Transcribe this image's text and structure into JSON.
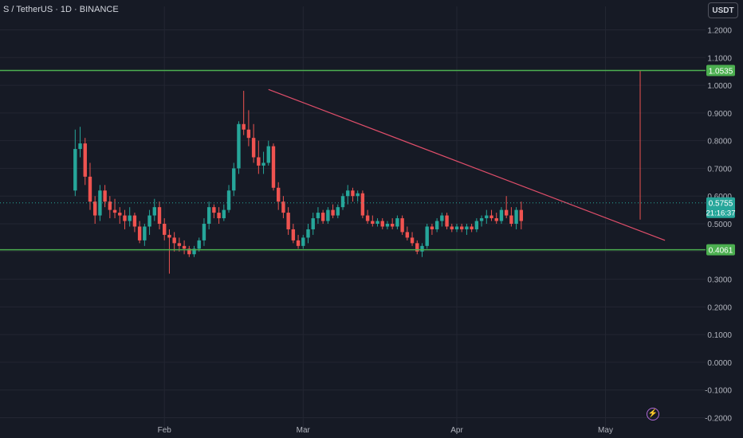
{
  "header": {
    "symbol": "S / TetherUS · 1D · BINANCE",
    "currency_button": "USDT"
  },
  "colors": {
    "background": "#161a25",
    "grid": "#232632",
    "text": "#b2b5be",
    "up": "#26a69a",
    "down": "#ef5350",
    "support_line": "#4caf50",
    "trendline": "#e04e6a",
    "last_price_line": "#26a69a",
    "spike": "#ef5350"
  },
  "chart_data": {
    "type": "candlestick",
    "title": "",
    "y_ticks": [
      "1.2000",
      "1.1000",
      "1.0000",
      "0.9000",
      "0.8000",
      "0.7000",
      "0.6000",
      "0.5000",
      "0.4000",
      "0.3000",
      "0.2000",
      "0.1000",
      "0.0000",
      "-0.1000",
      "-0.2000"
    ],
    "y_range": [
      -0.2,
      1.3
    ],
    "x_ticks": [
      {
        "label": "Feb",
        "date": "2025-02-01"
      },
      {
        "label": "Mar",
        "date": "2025-03-01"
      },
      {
        "label": "Apr",
        "date": "2025-04-01"
      },
      {
        "label": "May",
        "date": "2025-05-01"
      }
    ],
    "x_range": [
      "2025-01-09",
      "2025-05-26"
    ],
    "horizontal_levels": [
      {
        "value": 1.0535,
        "label": "1.0535"
      },
      {
        "value": 0.4061,
        "label": "0.4061"
      }
    ],
    "current_price": {
      "value": 0.5755,
      "label": "0.5755",
      "countdown": "21:16:37"
    },
    "trendline": {
      "from": {
        "date": "2025-02-22",
        "price": 0.985
      },
      "to": {
        "date": "2025-05-13",
        "price": 0.44
      }
    },
    "spike": {
      "date": "2025-05-08",
      "from": 0.515,
      "to": 1.0535
    },
    "candles": [
      [
        "2025-01-14",
        0.62,
        0.84,
        0.6,
        0.77
      ],
      [
        "2025-01-15",
        0.77,
        0.85,
        0.74,
        0.79
      ],
      [
        "2025-01-16",
        0.79,
        0.81,
        0.64,
        0.67
      ],
      [
        "2025-01-17",
        0.67,
        0.72,
        0.55,
        0.58
      ],
      [
        "2025-01-18",
        0.58,
        0.6,
        0.5,
        0.53
      ],
      [
        "2025-01-19",
        0.53,
        0.64,
        0.51,
        0.62
      ],
      [
        "2025-01-20",
        0.62,
        0.64,
        0.56,
        0.58
      ],
      [
        "2025-01-21",
        0.58,
        0.6,
        0.52,
        0.55
      ],
      [
        "2025-01-22",
        0.55,
        0.59,
        0.52,
        0.54
      ],
      [
        "2025-01-23",
        0.54,
        0.56,
        0.5,
        0.53
      ],
      [
        "2025-01-24",
        0.53,
        0.55,
        0.48,
        0.51
      ],
      [
        "2025-01-25",
        0.51,
        0.56,
        0.49,
        0.53
      ],
      [
        "2025-01-26",
        0.53,
        0.54,
        0.47,
        0.49
      ],
      [
        "2025-01-27",
        0.49,
        0.51,
        0.43,
        0.44
      ],
      [
        "2025-01-28",
        0.44,
        0.5,
        0.42,
        0.49
      ],
      [
        "2025-01-29",
        0.49,
        0.55,
        0.46,
        0.53
      ],
      [
        "2025-01-30",
        0.53,
        0.59,
        0.51,
        0.56
      ],
      [
        "2025-01-31",
        0.56,
        0.58,
        0.48,
        0.5
      ],
      [
        "2025-02-01",
        0.5,
        0.52,
        0.44,
        0.46
      ],
      [
        "2025-02-02",
        0.46,
        0.48,
        0.32,
        0.45
      ],
      [
        "2025-02-03",
        0.45,
        0.47,
        0.4,
        0.43
      ],
      [
        "2025-02-04",
        0.43,
        0.45,
        0.4,
        0.42
      ],
      [
        "2025-02-05",
        0.42,
        0.44,
        0.39,
        0.41
      ],
      [
        "2025-02-06",
        0.41,
        0.42,
        0.38,
        0.39
      ],
      [
        "2025-02-07",
        0.39,
        0.42,
        0.38,
        0.41
      ],
      [
        "2025-02-08",
        0.41,
        0.45,
        0.4,
        0.44
      ],
      [
        "2025-02-09",
        0.44,
        0.52,
        0.42,
        0.5
      ],
      [
        "2025-02-10",
        0.5,
        0.58,
        0.48,
        0.56
      ],
      [
        "2025-02-11",
        0.56,
        0.57,
        0.52,
        0.54
      ],
      [
        "2025-02-12",
        0.54,
        0.56,
        0.5,
        0.52
      ],
      [
        "2025-02-13",
        0.52,
        0.57,
        0.51,
        0.55
      ],
      [
        "2025-02-14",
        0.55,
        0.64,
        0.54,
        0.62
      ],
      [
        "2025-02-15",
        0.62,
        0.72,
        0.6,
        0.7
      ],
      [
        "2025-02-16",
        0.7,
        0.87,
        0.68,
        0.86
      ],
      [
        "2025-02-17",
        0.86,
        0.98,
        0.82,
        0.84
      ],
      [
        "2025-02-18",
        0.84,
        0.91,
        0.78,
        0.81
      ],
      [
        "2025-02-19",
        0.81,
        0.86,
        0.72,
        0.74
      ],
      [
        "2025-02-20",
        0.74,
        0.8,
        0.68,
        0.71
      ],
      [
        "2025-02-21",
        0.71,
        0.76,
        0.68,
        0.72
      ],
      [
        "2025-02-22",
        0.72,
        0.8,
        0.71,
        0.78
      ],
      [
        "2025-02-23",
        0.78,
        0.79,
        0.62,
        0.63
      ],
      [
        "2025-02-24",
        0.63,
        0.65,
        0.55,
        0.58
      ],
      [
        "2025-02-25",
        0.58,
        0.6,
        0.52,
        0.54
      ],
      [
        "2025-02-26",
        0.54,
        0.56,
        0.46,
        0.48
      ],
      [
        "2025-02-27",
        0.48,
        0.5,
        0.43,
        0.44
      ],
      [
        "2025-02-28",
        0.44,
        0.46,
        0.41,
        0.42
      ],
      [
        "2025-03-01",
        0.42,
        0.46,
        0.41,
        0.45
      ],
      [
        "2025-03-02",
        0.45,
        0.5,
        0.43,
        0.48
      ],
      [
        "2025-03-03",
        0.48,
        0.54,
        0.46,
        0.52
      ],
      [
        "2025-03-04",
        0.52,
        0.56,
        0.5,
        0.54
      ],
      [
        "2025-03-05",
        0.54,
        0.55,
        0.5,
        0.51
      ],
      [
        "2025-03-06",
        0.51,
        0.56,
        0.5,
        0.55
      ],
      [
        "2025-03-07",
        0.55,
        0.57,
        0.52,
        0.53
      ],
      [
        "2025-03-08",
        0.53,
        0.57,
        0.52,
        0.56
      ],
      [
        "2025-03-09",
        0.56,
        0.61,
        0.55,
        0.6
      ],
      [
        "2025-03-10",
        0.6,
        0.64,
        0.57,
        0.62
      ],
      [
        "2025-03-11",
        0.62,
        0.63,
        0.58,
        0.6
      ],
      [
        "2025-03-12",
        0.6,
        0.62,
        0.58,
        0.61
      ],
      [
        "2025-03-13",
        0.61,
        0.62,
        0.52,
        0.53
      ],
      [
        "2025-03-14",
        0.53,
        0.55,
        0.5,
        0.51
      ],
      [
        "2025-03-15",
        0.51,
        0.53,
        0.49,
        0.5
      ],
      [
        "2025-03-16",
        0.5,
        0.52,
        0.49,
        0.51
      ],
      [
        "2025-03-17",
        0.51,
        0.52,
        0.48,
        0.49
      ],
      [
        "2025-03-18",
        0.49,
        0.51,
        0.48,
        0.5
      ],
      [
        "2025-03-19",
        0.5,
        0.52,
        0.48,
        0.49
      ],
      [
        "2025-03-20",
        0.49,
        0.53,
        0.48,
        0.52
      ],
      [
        "2025-03-21",
        0.52,
        0.53,
        0.46,
        0.47
      ],
      [
        "2025-03-22",
        0.47,
        0.49,
        0.44,
        0.45
      ],
      [
        "2025-03-23",
        0.45,
        0.47,
        0.42,
        0.43
      ],
      [
        "2025-03-24",
        0.43,
        0.44,
        0.39,
        0.4
      ],
      [
        "2025-03-25",
        0.4,
        0.43,
        0.38,
        0.42
      ],
      [
        "2025-03-26",
        0.42,
        0.5,
        0.41,
        0.49
      ],
      [
        "2025-03-27",
        0.49,
        0.5,
        0.46,
        0.48
      ],
      [
        "2025-03-28",
        0.48,
        0.52,
        0.47,
        0.51
      ],
      [
        "2025-03-29",
        0.51,
        0.54,
        0.49,
        0.53
      ],
      [
        "2025-03-30",
        0.53,
        0.54,
        0.48,
        0.49
      ],
      [
        "2025-03-31",
        0.49,
        0.5,
        0.47,
        0.48
      ],
      [
        "2025-04-01",
        0.48,
        0.5,
        0.47,
        0.49
      ],
      [
        "2025-04-02",
        0.49,
        0.5,
        0.47,
        0.48
      ],
      [
        "2025-04-03",
        0.48,
        0.5,
        0.46,
        0.49
      ],
      [
        "2025-04-04",
        0.49,
        0.5,
        0.47,
        0.48
      ],
      [
        "2025-04-05",
        0.48,
        0.52,
        0.47,
        0.51
      ],
      [
        "2025-04-06",
        0.51,
        0.53,
        0.49,
        0.52
      ],
      [
        "2025-04-07",
        0.52,
        0.55,
        0.5,
        0.53
      ],
      [
        "2025-04-08",
        0.53,
        0.55,
        0.51,
        0.52
      ],
      [
        "2025-04-09",
        0.52,
        0.54,
        0.5,
        0.51
      ],
      [
        "2025-04-10",
        0.51,
        0.56,
        0.5,
        0.55
      ],
      [
        "2025-04-11",
        0.55,
        0.6,
        0.52,
        0.53
      ],
      [
        "2025-04-12",
        0.53,
        0.56,
        0.49,
        0.5
      ],
      [
        "2025-04-13",
        0.5,
        0.56,
        0.48,
        0.55
      ],
      [
        "2025-04-14",
        0.55,
        0.58,
        0.48,
        0.51
      ]
    ]
  }
}
